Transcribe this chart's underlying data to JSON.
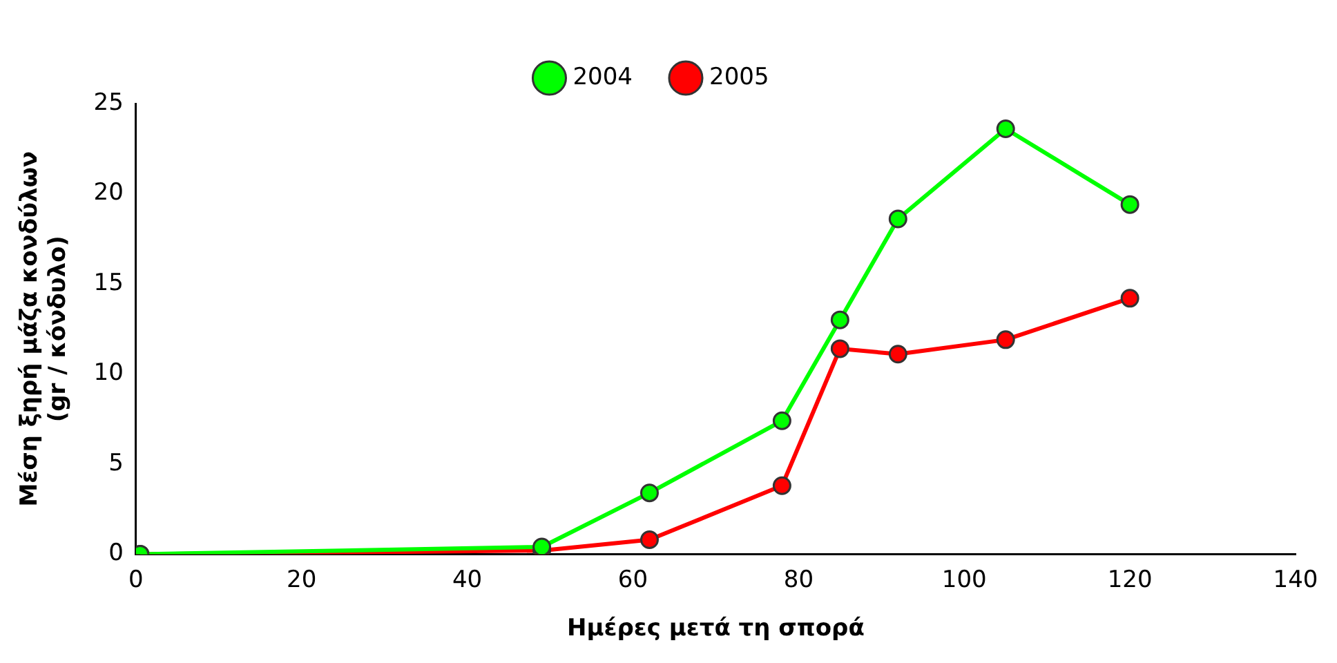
{
  "chart_data": {
    "type": "line",
    "xlabel": "Ημέρες μετά τη σπορά",
    "ylabel": "Μέση ξηρή μάζα κονδύλων\n(gr / κόνδυλο)",
    "xlim": [
      0,
      140
    ],
    "xticks": [
      0,
      20,
      40,
      60,
      80,
      100,
      120,
      140
    ],
    "ylim": [
      0,
      25
    ],
    "yticks": [
      0,
      5,
      10,
      15,
      20,
      25
    ],
    "grid": false,
    "legend": "top",
    "marker": "circle",
    "line_style": "solid",
    "series": [
      {
        "name": "2005",
        "color": "#ff0000",
        "x": [
          0.5,
          49,
          62,
          78,
          85,
          92,
          105,
          120
        ],
        "values": [
          0,
          0.2,
          0.8,
          3.8,
          11.4,
          11.1,
          11.9,
          14.2
        ]
      },
      {
        "name": "2004",
        "color": "#00ff00",
        "x": [
          0.5,
          49,
          62,
          78,
          85,
          92,
          105,
          120
        ],
        "values": [
          0,
          0.4,
          3.4,
          7.4,
          13,
          18.6,
          23.6,
          19.4
        ]
      }
    ]
  }
}
